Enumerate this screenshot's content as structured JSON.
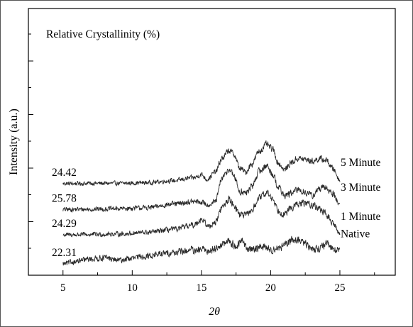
{
  "chart_data": {
    "type": "line",
    "title": "",
    "annotation": "Relative Crystallinity (%)",
    "xlabel": "2θ",
    "ylabel": "Intensity (a.u.)",
    "xlim": [
      2.5,
      29
    ],
    "x_ticks": [
      5,
      10,
      15,
      20,
      25
    ],
    "x_tick_labels": [
      "5",
      "10",
      "15",
      "20",
      "25"
    ],
    "y_tick_count": 5,
    "grid": false,
    "x_range": [
      5,
      25
    ],
    "series": [
      {
        "name": "5 Minute",
        "relative_crystallinity": "24.42",
        "baseline": 8.6,
        "noise": 0.18,
        "points": [
          [
            5,
            0
          ],
          [
            7,
            0.05
          ],
          [
            9,
            0.05
          ],
          [
            11,
            0.15
          ],
          [
            13,
            0.5
          ],
          [
            14.5,
            1.0
          ],
          [
            15,
            1.5
          ],
          [
            15.4,
            0.7
          ],
          [
            16,
            1.9
          ],
          [
            16.5,
            4.2
          ],
          [
            17,
            5.5
          ],
          [
            17.3,
            5.0
          ],
          [
            17.8,
            2.5
          ],
          [
            18.2,
            1.9
          ],
          [
            18.6,
            3.2
          ],
          [
            19.2,
            5.4
          ],
          [
            19.7,
            6.5
          ],
          [
            20.1,
            5.8
          ],
          [
            20.6,
            3.3
          ],
          [
            21,
            2.3
          ],
          [
            21.5,
            3.5
          ],
          [
            22,
            4.2
          ],
          [
            22.5,
            4.0
          ],
          [
            23,
            3.7
          ],
          [
            23.5,
            4.1
          ],
          [
            24,
            3.9
          ],
          [
            24.5,
            2.5
          ],
          [
            25,
            0.6
          ]
        ]
      },
      {
        "name": "3 Minute",
        "relative_crystallinity": "25.78",
        "baseline": 4.3,
        "noise": 0.2,
        "points": [
          [
            5,
            0
          ],
          [
            7,
            0.05
          ],
          [
            9,
            0.15
          ],
          [
            11,
            0.3
          ],
          [
            13,
            0.9
          ],
          [
            14.5,
            1.3
          ],
          [
            15,
            1.2
          ],
          [
            15.5,
            0.8
          ],
          [
            16,
            1.3
          ],
          [
            16.5,
            5.2
          ],
          [
            17,
            6.7
          ],
          [
            17.3,
            5.7
          ],
          [
            17.8,
            3.0
          ],
          [
            18.2,
            2.7
          ],
          [
            18.6,
            3.7
          ],
          [
            19.2,
            6.4
          ],
          [
            19.7,
            7.3
          ],
          [
            20.1,
            6.0
          ],
          [
            20.6,
            3.6
          ],
          [
            21,
            2.3
          ],
          [
            21.5,
            2.7
          ],
          [
            22,
            3.3
          ],
          [
            22.5,
            2.9
          ],
          [
            23,
            2.3
          ],
          [
            23.5,
            3.4
          ],
          [
            24,
            3.6
          ],
          [
            24.5,
            2.6
          ],
          [
            25,
            0.8
          ]
        ]
      },
      {
        "name": "1 Minute",
        "relative_crystallinity": "24.29",
        "baseline": 0.1,
        "noise": 0.2,
        "points": [
          [
            5,
            0
          ],
          [
            7,
            0.05
          ],
          [
            9,
            0.15
          ],
          [
            11,
            0.4
          ],
          [
            13,
            0.9
          ],
          [
            14.4,
            1.6
          ],
          [
            15,
            2.6
          ],
          [
            15.5,
            1.4
          ],
          [
            16,
            2.1
          ],
          [
            16.5,
            4.6
          ],
          [
            17,
            5.9
          ],
          [
            17.3,
            5.1
          ],
          [
            17.8,
            3.4
          ],
          [
            18.2,
            3.2
          ],
          [
            18.6,
            4.0
          ],
          [
            19.2,
            6.1
          ],
          [
            19.7,
            7.0
          ],
          [
            20.1,
            6.1
          ],
          [
            20.6,
            4.0
          ],
          [
            21,
            3.4
          ],
          [
            21.5,
            4.5
          ],
          [
            22,
            5.1
          ],
          [
            22.5,
            5.3
          ],
          [
            23,
            5.0
          ],
          [
            23.5,
            4.4
          ],
          [
            24,
            3.4
          ],
          [
            24.5,
            1.9
          ],
          [
            25,
            0.2
          ]
        ]
      },
      {
        "name": "Native",
        "relative_crystallinity": "22.31",
        "baseline": -4.7,
        "noise": 0.22,
        "points": [
          [
            5,
            0
          ],
          [
            6,
            0.4
          ],
          [
            7,
            0.8
          ],
          [
            8,
            1.0
          ],
          [
            9,
            0.6
          ],
          [
            10,
            0.9
          ],
          [
            11,
            1.3
          ],
          [
            12,
            1.6
          ],
          [
            13,
            1.9
          ],
          [
            14,
            2.1
          ],
          [
            14.2,
            2.6
          ],
          [
            14.5,
            1.9
          ],
          [
            15,
            2.4
          ],
          [
            15.5,
            2.1
          ],
          [
            16,
            2.6
          ],
          [
            16.5,
            3.2
          ],
          [
            17,
            3.7
          ],
          [
            17.5,
            2.9
          ],
          [
            18,
            3.9
          ],
          [
            18.3,
            2.4
          ],
          [
            19,
            2.6
          ],
          [
            19.5,
            2.9
          ],
          [
            20,
            2.3
          ],
          [
            20.5,
            2.6
          ],
          [
            21,
            3.0
          ],
          [
            21.5,
            3.9
          ],
          [
            22,
            4.0
          ],
          [
            22.5,
            3.3
          ],
          [
            23,
            2.5
          ],
          [
            23.5,
            2.6
          ],
          [
            24,
            3.2
          ],
          [
            24.5,
            2.6
          ],
          [
            25,
            2.1
          ]
        ]
      }
    ]
  }
}
